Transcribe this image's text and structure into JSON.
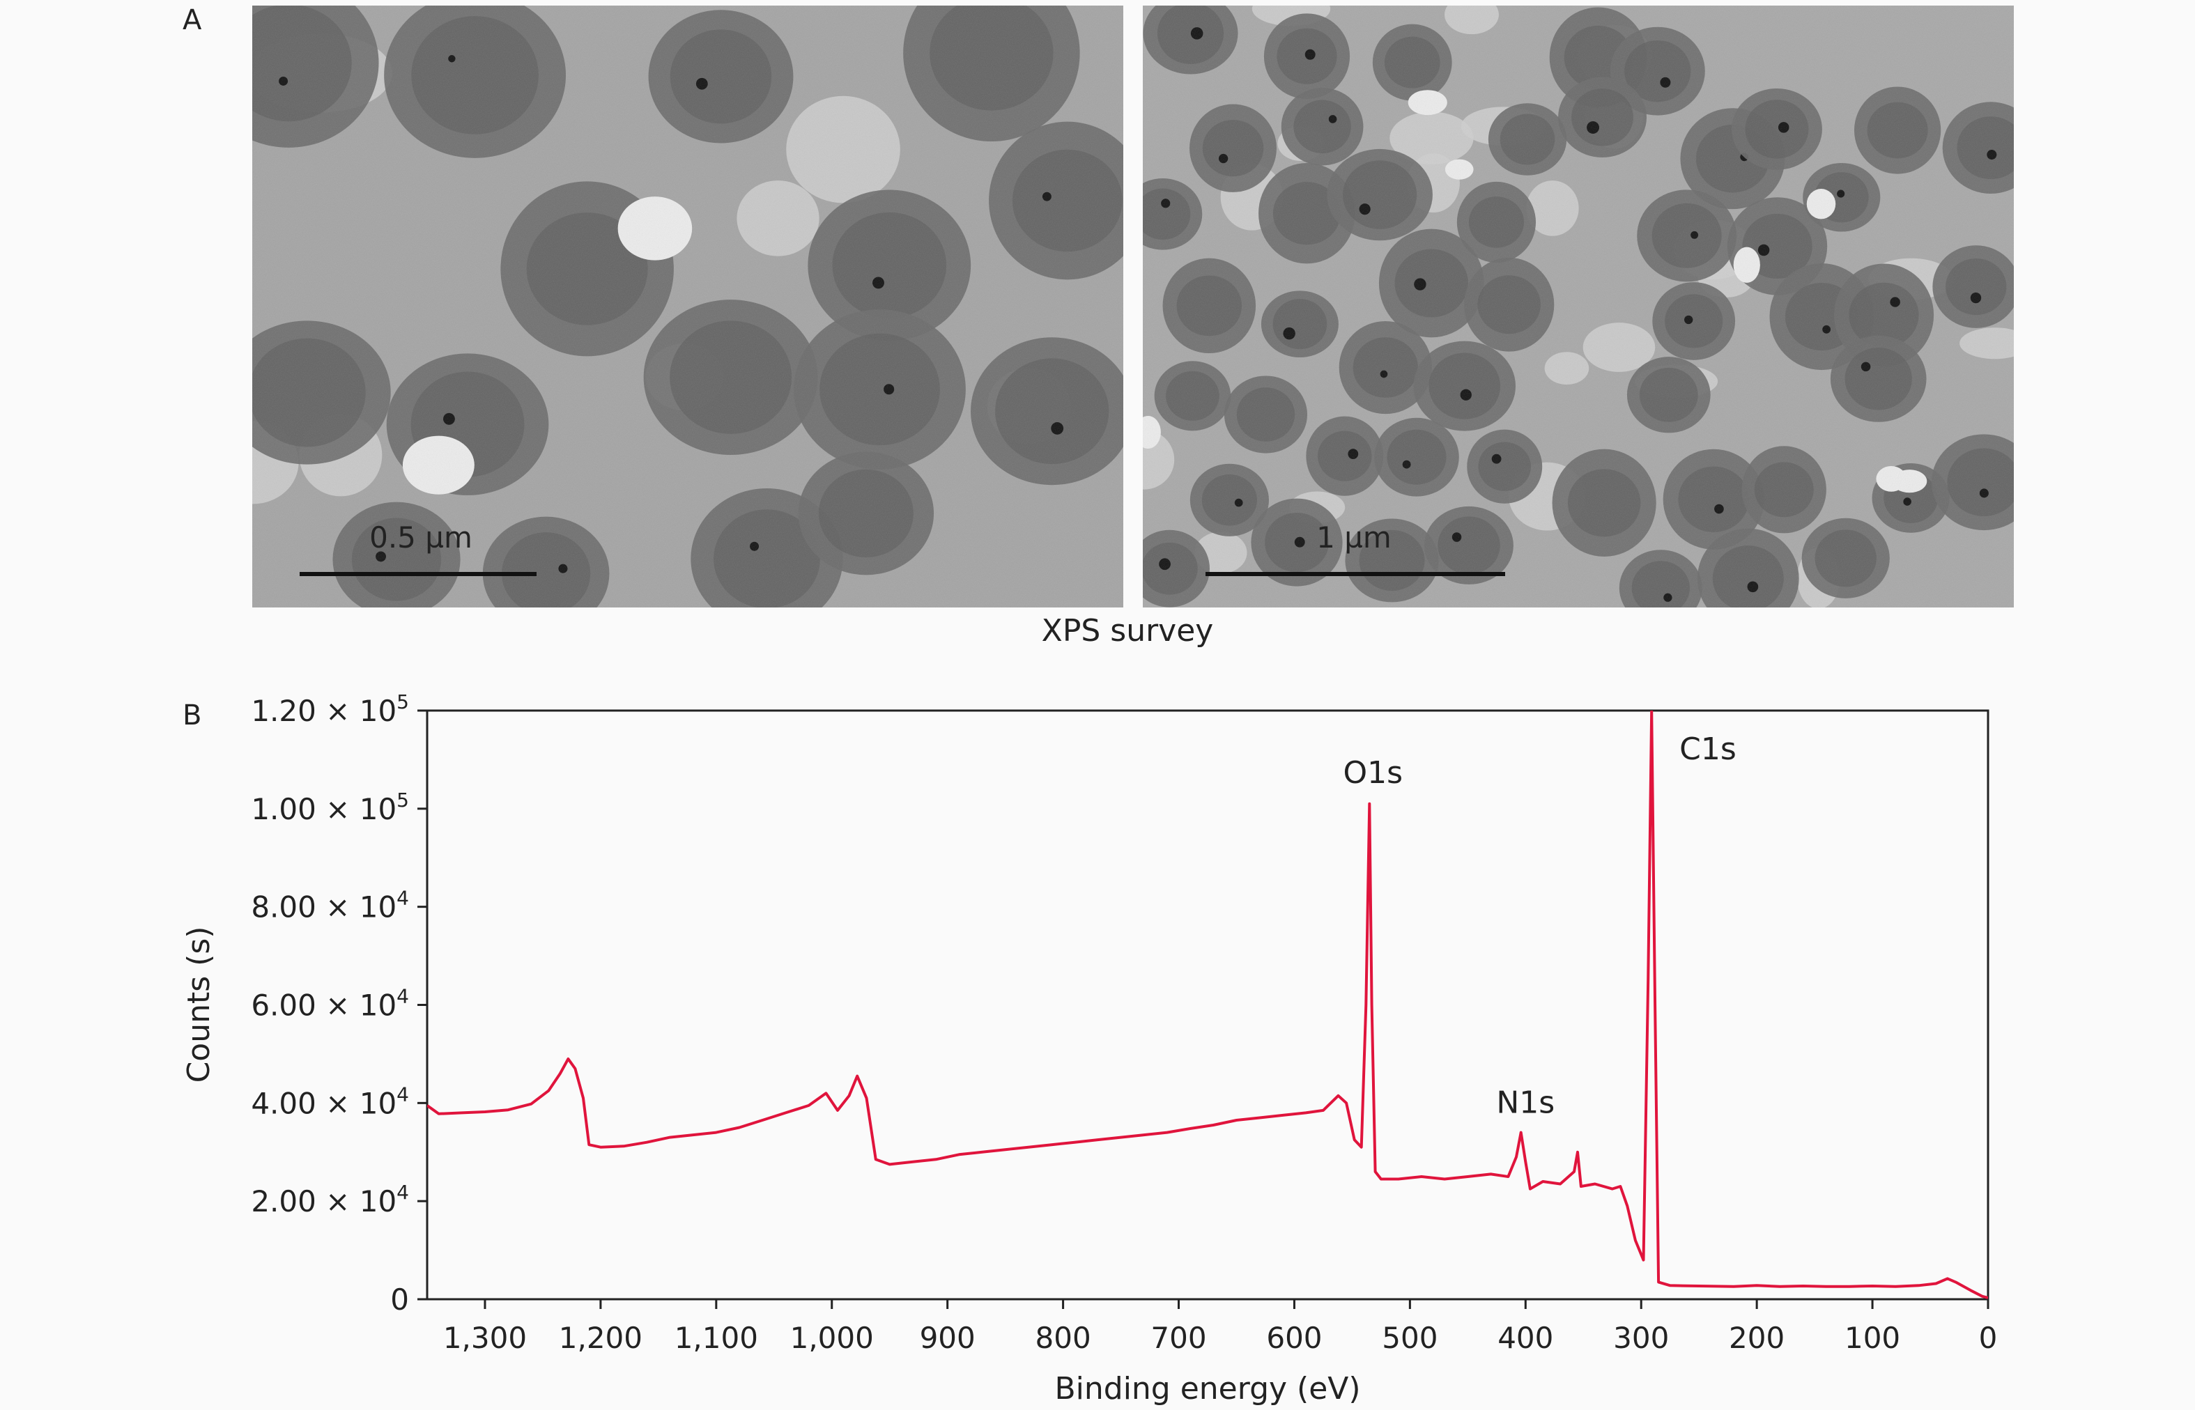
{
  "panel_a": {
    "label": "A",
    "caption": "XPS survey",
    "images": [
      {
        "scale_bar": "0.5 µm"
      },
      {
        "scale_bar": "1 µm"
      }
    ]
  },
  "chart_data": {
    "type": "line",
    "panel_label": "B",
    "title": "",
    "xlabel": "Binding energy (eV)",
    "ylabel": "Counts (s)",
    "x_reversed": true,
    "xlim": [
      1350,
      0
    ],
    "ylim": [
      0,
      120000
    ],
    "x_ticks": [
      1300,
      1200,
      1100,
      1000,
      900,
      800,
      700,
      600,
      500,
      400,
      300,
      200,
      100,
      0
    ],
    "x_tick_labels": [
      "1,300",
      "1,200",
      "1,100",
      "1,000",
      "900",
      "800",
      "700",
      "600",
      "500",
      "400",
      "300",
      "200",
      "100",
      "0"
    ],
    "y_ticks": [
      {
        "value": 0,
        "mantissa": "0",
        "exp": ""
      },
      {
        "value": 20000,
        "mantissa": "2.00 × 10",
        "exp": "4"
      },
      {
        "value": 40000,
        "mantissa": "4.00 × 10",
        "exp": "4"
      },
      {
        "value": 60000,
        "mantissa": "6.00 × 10",
        "exp": "4"
      },
      {
        "value": 80000,
        "mantissa": "8.00 × 10",
        "exp": "4"
      },
      {
        "value": 100000,
        "mantissa": "1.00 × 10",
        "exp": "5"
      },
      {
        "value": 120000,
        "mantissa": "1.20 × 10",
        "exp": "5"
      }
    ],
    "line_color": "#e0143c",
    "annotations": [
      {
        "text": "O1s",
        "x": 532,
        "y": 101000
      },
      {
        "text": "N1s",
        "x": 400,
        "y": 34000
      },
      {
        "text": "C1s",
        "x": 285,
        "y": 120000
      }
    ],
    "series": [
      {
        "values": [
          [
            1350,
            39500
          ],
          [
            1340,
            37800
          ],
          [
            1320,
            38000
          ],
          [
            1300,
            38200
          ],
          [
            1280,
            38600
          ],
          [
            1260,
            39800
          ],
          [
            1245,
            42500
          ],
          [
            1235,
            46000
          ],
          [
            1228,
            49000
          ],
          [
            1222,
            47000
          ],
          [
            1215,
            41000
          ],
          [
            1210,
            31500
          ],
          [
            1200,
            31000
          ],
          [
            1180,
            31200
          ],
          [
            1160,
            32000
          ],
          [
            1140,
            33000
          ],
          [
            1120,
            33500
          ],
          [
            1100,
            34000
          ],
          [
            1080,
            35000
          ],
          [
            1060,
            36500
          ],
          [
            1040,
            38000
          ],
          [
            1020,
            39500
          ],
          [
            1005,
            42000
          ],
          [
            995,
            38500
          ],
          [
            985,
            41500
          ],
          [
            978,
            45500
          ],
          [
            970,
            41000
          ],
          [
            962,
            28500
          ],
          [
            950,
            27500
          ],
          [
            930,
            28000
          ],
          [
            910,
            28500
          ],
          [
            890,
            29500
          ],
          [
            870,
            30000
          ],
          [
            850,
            30500
          ],
          [
            830,
            31000
          ],
          [
            810,
            31500
          ],
          [
            790,
            32000
          ],
          [
            770,
            32500
          ],
          [
            750,
            33000
          ],
          [
            730,
            33500
          ],
          [
            710,
            34000
          ],
          [
            690,
            34800
          ],
          [
            670,
            35500
          ],
          [
            650,
            36500
          ],
          [
            630,
            37000
          ],
          [
            610,
            37500
          ],
          [
            590,
            38000
          ],
          [
            575,
            38500
          ],
          [
            562,
            41500
          ],
          [
            555,
            40000
          ],
          [
            548,
            32500
          ],
          [
            542,
            31000
          ],
          [
            538,
            60000
          ],
          [
            535,
            101000
          ],
          [
            533,
            60000
          ],
          [
            530,
            26000
          ],
          [
            525,
            24500
          ],
          [
            510,
            24500
          ],
          [
            490,
            25000
          ],
          [
            470,
            24500
          ],
          [
            450,
            25000
          ],
          [
            430,
            25500
          ],
          [
            415,
            25000
          ],
          [
            408,
            29000
          ],
          [
            404,
            34000
          ],
          [
            400,
            28000
          ],
          [
            396,
            22500
          ],
          [
            385,
            24000
          ],
          [
            370,
            23500
          ],
          [
            358,
            26000
          ],
          [
            355,
            30000
          ],
          [
            352,
            23000
          ],
          [
            340,
            23500
          ],
          [
            325,
            22500
          ],
          [
            318,
            23000
          ],
          [
            312,
            19000
          ],
          [
            305,
            12000
          ],
          [
            298,
            8000
          ],
          [
            294,
            65000
          ],
          [
            291,
            120000
          ],
          [
            288,
            60000
          ],
          [
            285,
            3500
          ],
          [
            275,
            2800
          ],
          [
            250,
            2700
          ],
          [
            220,
            2600
          ],
          [
            200,
            2800
          ],
          [
            180,
            2600
          ],
          [
            160,
            2700
          ],
          [
            140,
            2600
          ],
          [
            120,
            2600
          ],
          [
            100,
            2700
          ],
          [
            80,
            2600
          ],
          [
            60,
            2800
          ],
          [
            45,
            3200
          ],
          [
            35,
            4200
          ],
          [
            28,
            3500
          ],
          [
            15,
            1800
          ],
          [
            5,
            600
          ],
          [
            0,
            300
          ]
        ]
      }
    ]
  }
}
